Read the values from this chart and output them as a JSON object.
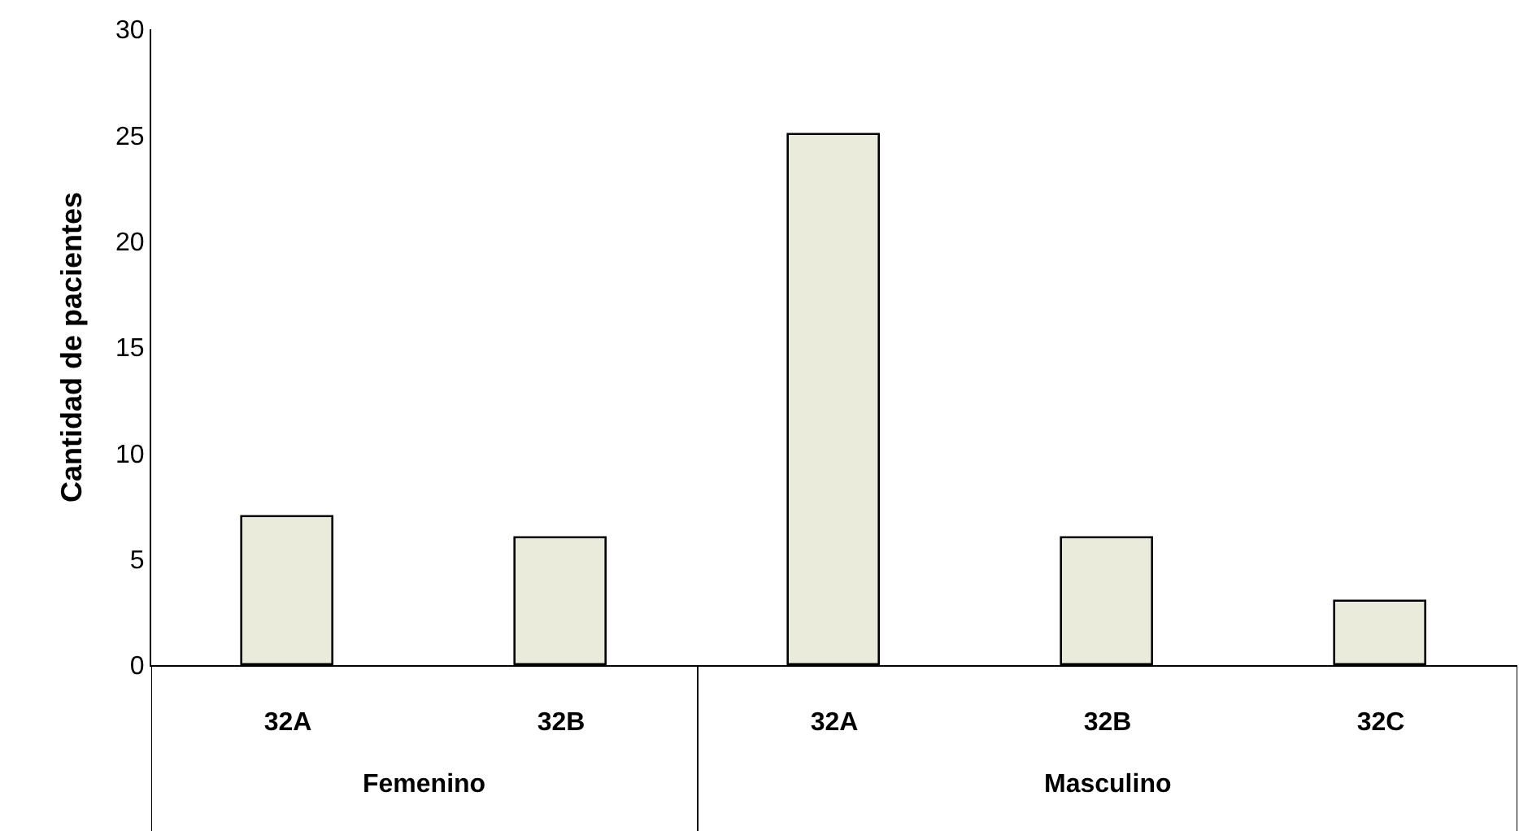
{
  "chart_data": {
    "type": "bar",
    "ylabel": "Cantidad de pacientes",
    "categories": [
      "32A",
      "32B",
      "32A",
      "32B",
      "32C"
    ],
    "values": [
      7,
      6,
      25,
      6,
      3
    ],
    "color": "#ebebdc",
    "ylim": [
      0,
      30
    ],
    "yticks": [
      0,
      5,
      10,
      15,
      20,
      25,
      30
    ],
    "legend": false,
    "annotations": [
      "Femenino",
      "Masculino"
    ]
  }
}
